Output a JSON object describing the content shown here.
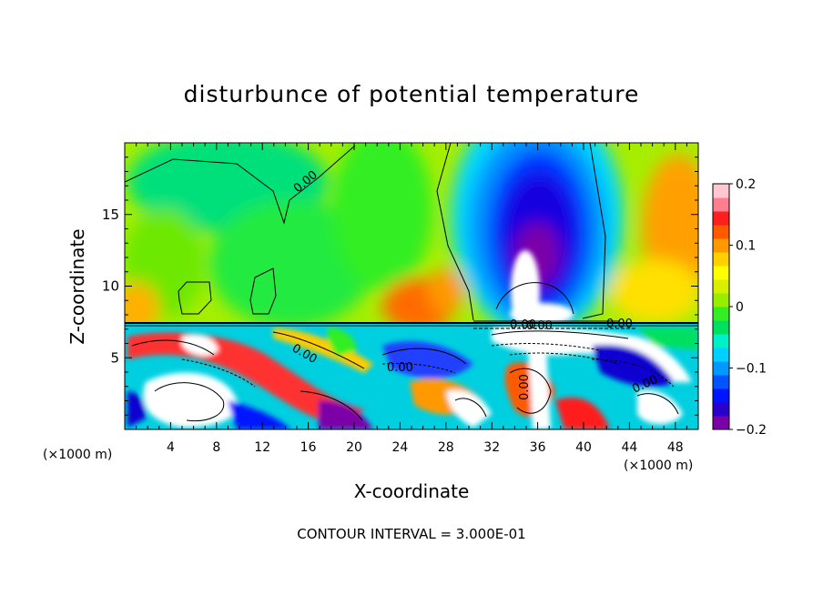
{
  "chart_data": {
    "type": "heatmap",
    "title": "disturbunce of potential temperature",
    "xlabel": "X-coordinate",
    "ylabel": "Z-coordinate",
    "x_unit_note": "(×1000 m)",
    "x_unit_note_right": "(×1000 m)",
    "footer": "CONTOUR INTERVAL = 3.000E-01",
    "xlim": [
      0,
      50
    ],
    "ylim": [
      0,
      20
    ],
    "x_ticks": [
      4,
      8,
      12,
      16,
      20,
      24,
      28,
      32,
      36,
      40,
      44,
      48
    ],
    "y_ticks": [
      5,
      10,
      15
    ],
    "colorbar": {
      "range": [
        -0.2,
        0.2
      ],
      "tick_values": [
        0.2,
        0.1,
        0,
        -0.1,
        -0.2
      ],
      "tick_labels": [
        "0.2",
        "0.1",
        "0",
        "−0.1",
        "−0.2"
      ],
      "colors": [
        "#7b00a8",
        "#2a00cc",
        "#0015ff",
        "#0055ff",
        "#0099ff",
        "#00d0ff",
        "#00f0c8",
        "#00e060",
        "#33ee22",
        "#99ee00",
        "#d8f000",
        "#ffff00",
        "#ffd000",
        "#ff9900",
        "#ff5a00",
        "#ff1f1f",
        "#ff7f8f",
        "#ffc8d0"
      ]
    },
    "contour_labels": [
      "0.00",
      "0.00",
      "0.00",
      "0.00",
      "0.00",
      "0.00",
      "0.00",
      "0.00"
    ],
    "features": [
      {
        "name": "negative anomaly core",
        "x": 35,
        "z": 15,
        "value": -0.2
      },
      {
        "name": "strong positive column",
        "x": 34.5,
        "z": 9.5,
        "value": 0.3
      },
      {
        "name": "positive anomaly right",
        "x": 48,
        "z": 14,
        "value": 0.12
      },
      {
        "name": "positive anomaly lower-left",
        "x": 1,
        "z": 9,
        "value": 0.1
      },
      {
        "name": "positive anomaly near 24",
        "x": 23.5,
        "z": 8.5,
        "value": 0.15
      },
      {
        "name": "turbulent layer",
        "z_range": [
          0,
          7.3
        ],
        "value_range": [
          -0.3,
          0.3
        ]
      }
    ]
  }
}
